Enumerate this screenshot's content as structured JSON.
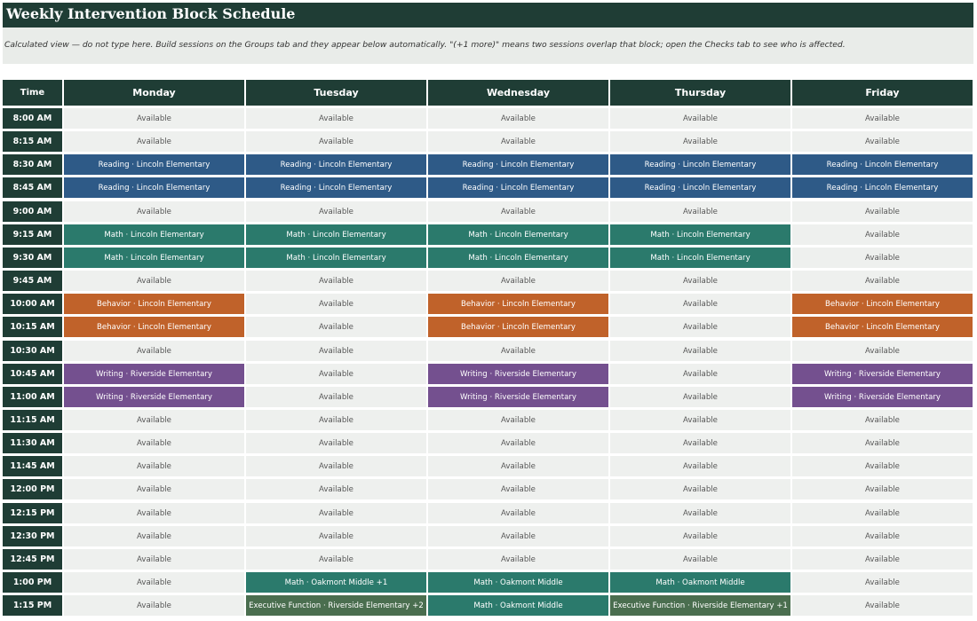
{
  "sheet": {
    "title": "Weekly Intervention Block Schedule",
    "note": "Calculated view — do not type here. Build sessions on the Groups tab and they appear below automatically. \"(+1 more)\" means two sessions overlap that block; open the Checks tab to see who is affected."
  },
  "colors": {
    "header": "#1f3d35",
    "available": "#eef0ee",
    "reading": "#2e5a87",
    "math": "#2b7a6c",
    "behavior": "#c0622a",
    "writing": "#74508f",
    "executive_function": "#4a6e4f"
  },
  "table": {
    "time_header": "Time",
    "days": [
      "Monday",
      "Tuesday",
      "Wednesday",
      "Thursday",
      "Friday"
    ],
    "rows": [
      {
        "time": "8:00 AM",
        "cells": [
          {
            "t": "Available",
            "k": "available"
          },
          {
            "t": "Available",
            "k": "available"
          },
          {
            "t": "Available",
            "k": "available"
          },
          {
            "t": "Available",
            "k": "available"
          },
          {
            "t": "Available",
            "k": "available"
          }
        ]
      },
      {
        "time": "8:15 AM",
        "cells": [
          {
            "t": "Available",
            "k": "available"
          },
          {
            "t": "Available",
            "k": "available"
          },
          {
            "t": "Available",
            "k": "available"
          },
          {
            "t": "Available",
            "k": "available"
          },
          {
            "t": "Available",
            "k": "available"
          }
        ]
      },
      {
        "time": "8:30 AM",
        "cells": [
          {
            "t": "Reading  ·  Lincoln Elementary",
            "k": "reading"
          },
          {
            "t": "Reading  ·  Lincoln Elementary",
            "k": "reading"
          },
          {
            "t": "Reading  ·  Lincoln Elementary",
            "k": "reading"
          },
          {
            "t": "Reading  ·  Lincoln Elementary",
            "k": "reading"
          },
          {
            "t": "Reading  ·  Lincoln Elementary",
            "k": "reading"
          }
        ]
      },
      {
        "time": "8:45 AM",
        "cells": [
          {
            "t": "Reading  ·  Lincoln Elementary",
            "k": "reading"
          },
          {
            "t": "Reading  ·  Lincoln Elementary",
            "k": "reading"
          },
          {
            "t": "Reading  ·  Lincoln Elementary",
            "k": "reading"
          },
          {
            "t": "Reading  ·  Lincoln Elementary",
            "k": "reading"
          },
          {
            "t": "Reading  ·  Lincoln Elementary",
            "k": "reading"
          }
        ]
      },
      {
        "time": "9:00 AM",
        "cells": [
          {
            "t": "Available",
            "k": "available"
          },
          {
            "t": "Available",
            "k": "available"
          },
          {
            "t": "Available",
            "k": "available"
          },
          {
            "t": "Available",
            "k": "available"
          },
          {
            "t": "Available",
            "k": "available"
          }
        ]
      },
      {
        "time": "9:15 AM",
        "cells": [
          {
            "t": "Math  ·  Lincoln Elementary",
            "k": "math"
          },
          {
            "t": "Math  ·  Lincoln Elementary",
            "k": "math"
          },
          {
            "t": "Math  ·  Lincoln Elementary",
            "k": "math"
          },
          {
            "t": "Math  ·  Lincoln Elementary",
            "k": "math"
          },
          {
            "t": "Available",
            "k": "available"
          }
        ]
      },
      {
        "time": "9:30 AM",
        "cells": [
          {
            "t": "Math  ·  Lincoln Elementary",
            "k": "math"
          },
          {
            "t": "Math  ·  Lincoln Elementary",
            "k": "math"
          },
          {
            "t": "Math  ·  Lincoln Elementary",
            "k": "math"
          },
          {
            "t": "Math  ·  Lincoln Elementary",
            "k": "math"
          },
          {
            "t": "Available",
            "k": "available"
          }
        ]
      },
      {
        "time": "9:45 AM",
        "cells": [
          {
            "t": "Available",
            "k": "available"
          },
          {
            "t": "Available",
            "k": "available"
          },
          {
            "t": "Available",
            "k": "available"
          },
          {
            "t": "Available",
            "k": "available"
          },
          {
            "t": "Available",
            "k": "available"
          }
        ]
      },
      {
        "time": "10:00 AM",
        "cells": [
          {
            "t": "Behavior  ·  Lincoln Elementary",
            "k": "behavior"
          },
          {
            "t": "Available",
            "k": "available"
          },
          {
            "t": "Behavior  ·  Lincoln Elementary",
            "k": "behavior"
          },
          {
            "t": "Available",
            "k": "available"
          },
          {
            "t": "Behavior  ·  Lincoln Elementary",
            "k": "behavior"
          }
        ]
      },
      {
        "time": "10:15 AM",
        "cells": [
          {
            "t": "Behavior  ·  Lincoln Elementary",
            "k": "behavior"
          },
          {
            "t": "Available",
            "k": "available"
          },
          {
            "t": "Behavior  ·  Lincoln Elementary",
            "k": "behavior"
          },
          {
            "t": "Available",
            "k": "available"
          },
          {
            "t": "Behavior  ·  Lincoln Elementary",
            "k": "behavior"
          }
        ]
      },
      {
        "time": "10:30 AM",
        "cells": [
          {
            "t": "Available",
            "k": "available"
          },
          {
            "t": "Available",
            "k": "available"
          },
          {
            "t": "Available",
            "k": "available"
          },
          {
            "t": "Available",
            "k": "available"
          },
          {
            "t": "Available",
            "k": "available"
          }
        ]
      },
      {
        "time": "10:45 AM",
        "cells": [
          {
            "t": "Writing  ·  Riverside Elementary",
            "k": "writing"
          },
          {
            "t": "Available",
            "k": "available"
          },
          {
            "t": "Writing  ·  Riverside Elementary",
            "k": "writing"
          },
          {
            "t": "Available",
            "k": "available"
          },
          {
            "t": "Writing  ·  Riverside Elementary",
            "k": "writing"
          }
        ]
      },
      {
        "time": "11:00 AM",
        "cells": [
          {
            "t": "Writing  ·  Riverside Elementary",
            "k": "writing"
          },
          {
            "t": "Available",
            "k": "available"
          },
          {
            "t": "Writing  ·  Riverside Elementary",
            "k": "writing"
          },
          {
            "t": "Available",
            "k": "available"
          },
          {
            "t": "Writing  ·  Riverside Elementary",
            "k": "writing"
          }
        ]
      },
      {
        "time": "11:15 AM",
        "cells": [
          {
            "t": "Available",
            "k": "available"
          },
          {
            "t": "Available",
            "k": "available"
          },
          {
            "t": "Available",
            "k": "available"
          },
          {
            "t": "Available",
            "k": "available"
          },
          {
            "t": "Available",
            "k": "available"
          }
        ]
      },
      {
        "time": "11:30 AM",
        "cells": [
          {
            "t": "Available",
            "k": "available"
          },
          {
            "t": "Available",
            "k": "available"
          },
          {
            "t": "Available",
            "k": "available"
          },
          {
            "t": "Available",
            "k": "available"
          },
          {
            "t": "Available",
            "k": "available"
          }
        ]
      },
      {
        "time": "11:45 AM",
        "cells": [
          {
            "t": "Available",
            "k": "available"
          },
          {
            "t": "Available",
            "k": "available"
          },
          {
            "t": "Available",
            "k": "available"
          },
          {
            "t": "Available",
            "k": "available"
          },
          {
            "t": "Available",
            "k": "available"
          }
        ]
      },
      {
        "time": "12:00 PM",
        "cells": [
          {
            "t": "Available",
            "k": "available"
          },
          {
            "t": "Available",
            "k": "available"
          },
          {
            "t": "Available",
            "k": "available"
          },
          {
            "t": "Available",
            "k": "available"
          },
          {
            "t": "Available",
            "k": "available"
          }
        ]
      },
      {
        "time": "12:15 PM",
        "cells": [
          {
            "t": "Available",
            "k": "available"
          },
          {
            "t": "Available",
            "k": "available"
          },
          {
            "t": "Available",
            "k": "available"
          },
          {
            "t": "Available",
            "k": "available"
          },
          {
            "t": "Available",
            "k": "available"
          }
        ]
      },
      {
        "time": "12:30 PM",
        "cells": [
          {
            "t": "Available",
            "k": "available"
          },
          {
            "t": "Available",
            "k": "available"
          },
          {
            "t": "Available",
            "k": "available"
          },
          {
            "t": "Available",
            "k": "available"
          },
          {
            "t": "Available",
            "k": "available"
          }
        ]
      },
      {
        "time": "12:45 PM",
        "cells": [
          {
            "t": "Available",
            "k": "available"
          },
          {
            "t": "Available",
            "k": "available"
          },
          {
            "t": "Available",
            "k": "available"
          },
          {
            "t": "Available",
            "k": "available"
          },
          {
            "t": "Available",
            "k": "available"
          }
        ]
      },
      {
        "time": "1:00 PM",
        "cells": [
          {
            "t": "Available",
            "k": "available"
          },
          {
            "t": "Math  ·  Oakmont Middle  +1",
            "k": "math"
          },
          {
            "t": "Math  ·  Oakmont Middle",
            "k": "math"
          },
          {
            "t": "Math  ·  Oakmont Middle",
            "k": "math"
          },
          {
            "t": "Available",
            "k": "available"
          }
        ]
      },
      {
        "time": "1:15 PM",
        "cells": [
          {
            "t": "Available",
            "k": "available"
          },
          {
            "t": "Executive Function  ·  Riverside Elementary  +2",
            "k": "ef"
          },
          {
            "t": "Math  ·  Oakmont Middle",
            "k": "math"
          },
          {
            "t": "Executive Function  ·  Riverside Elementary  +1",
            "k": "ef"
          },
          {
            "t": "Available",
            "k": "available"
          }
        ]
      }
    ]
  }
}
